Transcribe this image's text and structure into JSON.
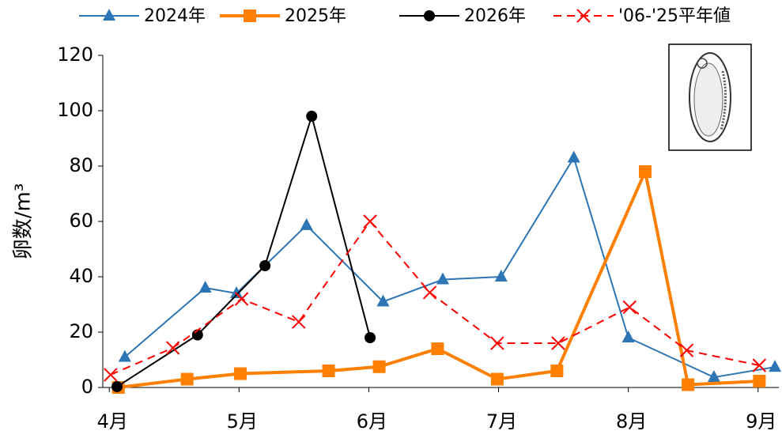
{
  "chart_data": {
    "type": "line",
    "y_label": "卵数/m³",
    "xlim": [
      3.95,
      9.16
    ],
    "xticks": [
      {
        "value": 4,
        "label": "4月"
      },
      {
        "value": 5,
        "label": "5月"
      },
      {
        "value": 6,
        "label": "6月"
      },
      {
        "value": 7,
        "label": "7月"
      },
      {
        "value": 8,
        "label": "8月"
      },
      {
        "value": 9,
        "label": "9月"
      }
    ],
    "ylim": [
      0,
      120
    ],
    "yticks": [
      0,
      20,
      40,
      60,
      80,
      100,
      120
    ],
    "grid": false,
    "legend": "top",
    "series": [
      {
        "name": "2024年",
        "color": "#2e75b6",
        "marker": "triangle",
        "dash": false,
        "width": 2,
        "x": [
          4.12,
          4.74,
          4.98,
          5.52,
          6.11,
          6.57,
          7.02,
          7.58,
          8.0,
          8.66,
          9.13
        ],
        "values": [
          11,
          36,
          34,
          58.6,
          31,
          39,
          40,
          83,
          18,
          3.7,
          7.4
        ]
      },
      {
        "name": "2025年",
        "color": "#ff7f00",
        "marker": "square",
        "dash": false,
        "width": 4,
        "x": [
          4.07,
          4.6,
          5.01,
          5.69,
          6.08,
          6.53,
          6.99,
          7.45,
          8.13,
          8.46,
          9.01
        ],
        "values": [
          0,
          3,
          5,
          6,
          7.5,
          14,
          3,
          6,
          78,
          1,
          2.3
        ]
      },
      {
        "name": "2026年",
        "color": "#000000",
        "marker": "circle",
        "dash": false,
        "width": 2,
        "x": [
          4.06,
          4.68,
          5.2,
          5.56,
          6.01
        ],
        "values": [
          0.3,
          19,
          44,
          98,
          18
        ]
      },
      {
        "name": "'06-'25平年値",
        "color": "#ff0000",
        "marker": "cross",
        "dash": true,
        "width": 2,
        "x": [
          4.01,
          4.49,
          5.02,
          5.46,
          6.01,
          6.47,
          6.99,
          7.46,
          8.01,
          8.45,
          9.01
        ],
        "values": [
          4.6,
          14.3,
          32,
          23.7,
          60,
          34.3,
          16,
          16,
          29,
          13.4,
          8
        ]
      }
    ]
  }
}
